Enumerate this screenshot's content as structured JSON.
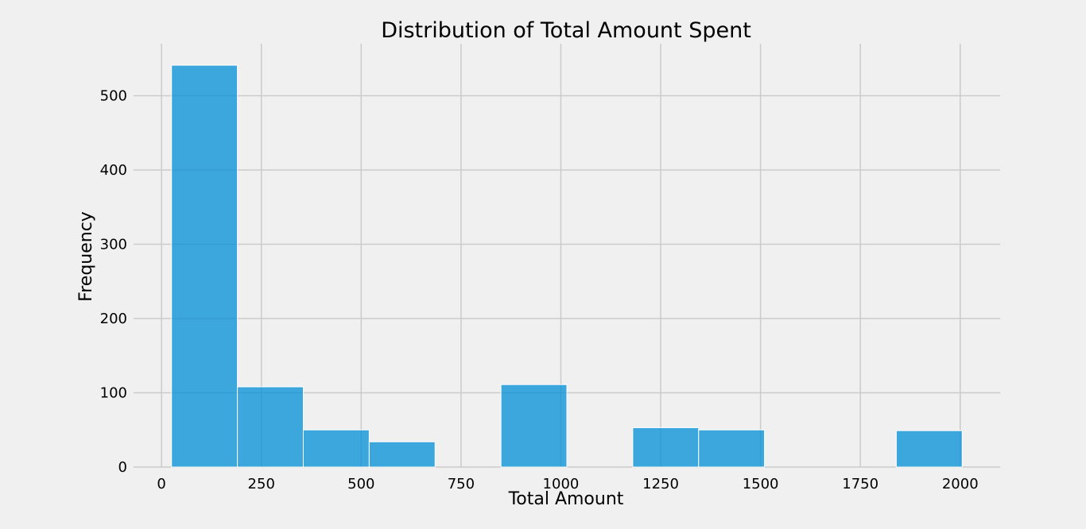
{
  "chart_data": {
    "type": "histogram",
    "title": "Distribution of Total Amount Spent",
    "xlabel": "Total Amount",
    "ylabel": "Frequency",
    "xlim": [
      -70,
      2100
    ],
    "ylim": [
      0,
      570
    ],
    "xticks": [
      0,
      250,
      500,
      750,
      1000,
      1250,
      1500,
      1750,
      2000
    ],
    "yticks": [
      0,
      100,
      200,
      300,
      400,
      500
    ],
    "grid": true,
    "color": "#008fd5",
    "bins": [
      {
        "start": 25,
        "end": 190,
        "count": 541
      },
      {
        "start": 190,
        "end": 355,
        "count": 108
      },
      {
        "start": 355,
        "end": 520,
        "count": 50
      },
      {
        "start": 520,
        "end": 685,
        "count": 34
      },
      {
        "start": 685,
        "end": 850,
        "count": 0
      },
      {
        "start": 850,
        "end": 1015,
        "count": 111
      },
      {
        "start": 1015,
        "end": 1180,
        "count": 0
      },
      {
        "start": 1180,
        "end": 1345,
        "count": 53
      },
      {
        "start": 1345,
        "end": 1510,
        "count": 50
      },
      {
        "start": 1510,
        "end": 1675,
        "count": 0
      },
      {
        "start": 1675,
        "end": 1840,
        "count": 0
      },
      {
        "start": 1840,
        "end": 2005,
        "count": 49
      }
    ]
  }
}
